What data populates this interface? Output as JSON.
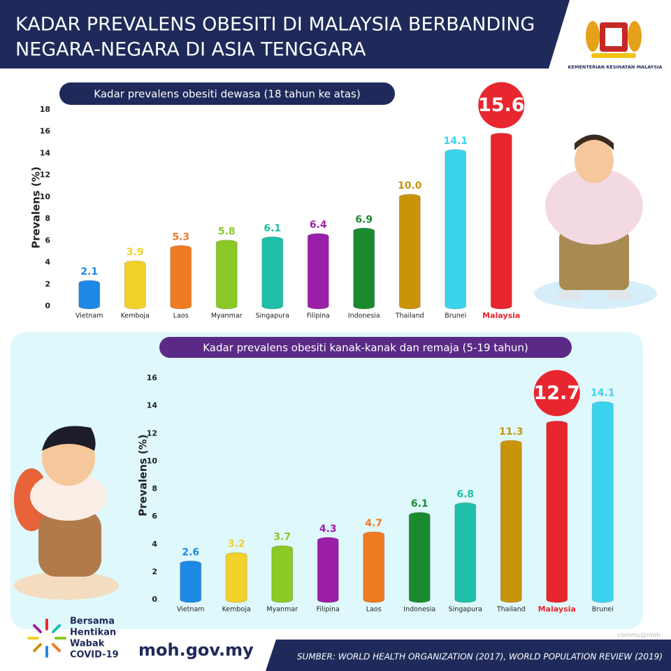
{
  "header": {
    "title_lines": [
      "KADAR PREVALENS OBESITI DI MALAYSIA BERBANDING",
      "NEGARA-NEGARA DI ASIA TENGGARA"
    ],
    "logo_caption": "KEMENTERIAN KESIHATAN MALAYSIA"
  },
  "chart_data": [
    {
      "type": "bar",
      "title": "Kadar prevalens obesiti dewasa (18 tahun ke atas)",
      "y_label": "Prevalens (%)",
      "categories": [
        "Vietnam",
        "Kemboja",
        "Laos",
        "Myanmar",
        "Singapura",
        "Filipina",
        "Indonesia",
        "Thailand",
        "Brunei",
        "Malaysia"
      ],
      "values": [
        2.1,
        3.9,
        5.3,
        5.8,
        6.1,
        6.4,
        6.9,
        10.0,
        14.1,
        15.6
      ],
      "value_labels": [
        "2.1",
        "3.9",
        "5.3",
        "5.8",
        "6.1",
        "6.4",
        "6.9",
        "10.0",
        "14.1",
        "15.6"
      ],
      "colors": [
        "#1e88e5",
        "#f2d12a",
        "#f07a22",
        "#8ac926",
        "#1fbfa8",
        "#9b1fa8",
        "#1b8a2f",
        "#c9930a",
        "#3cd3ee",
        "#e8262f"
      ],
      "highlight_index": 9,
      "ylim": [
        0,
        18
      ],
      "yticks": [
        0,
        2,
        4,
        6,
        8,
        10,
        12,
        14,
        16,
        18
      ]
    },
    {
      "type": "bar",
      "title": "Kadar prevalens obesiti kanak-kanak dan remaja (5-19 tahun)",
      "y_label": "Prevalens (%)",
      "categories": [
        "Vietnam",
        "Kemboja",
        "Myanmar",
        "Filipina",
        "Laos",
        "Indonesia",
        "Singapura",
        "Thailand",
        "Malaysia",
        "Brunei"
      ],
      "values": [
        2.6,
        3.2,
        3.7,
        4.3,
        4.7,
        6.1,
        6.8,
        11.3,
        12.7,
        14.1
      ],
      "colors": [
        "#1e88e5",
        "#f2d12a",
        "#8ac926",
        "#9b1fa8",
        "#f07a22",
        "#1b8a2f",
        "#1fbfa8",
        "#c9930a",
        "#e8262f",
        "#3cd3ee"
      ],
      "highlight_index": 8,
      "ylim": [
        0,
        16
      ],
      "yticks": [
        0,
        2,
        4,
        6,
        8,
        10,
        12,
        14,
        16
      ]
    }
  ],
  "footer": {
    "campaign_lines": [
      "Bersama",
      "Hentikan",
      "Wabak",
      "COVID-19"
    ],
    "website": "moh.gov.my",
    "source": "SUMBER: WORLD HEALTH ORGANIZATION (2017), WORLD POPULATION REVIEW (2019)",
    "credit": "comms@moh"
  }
}
